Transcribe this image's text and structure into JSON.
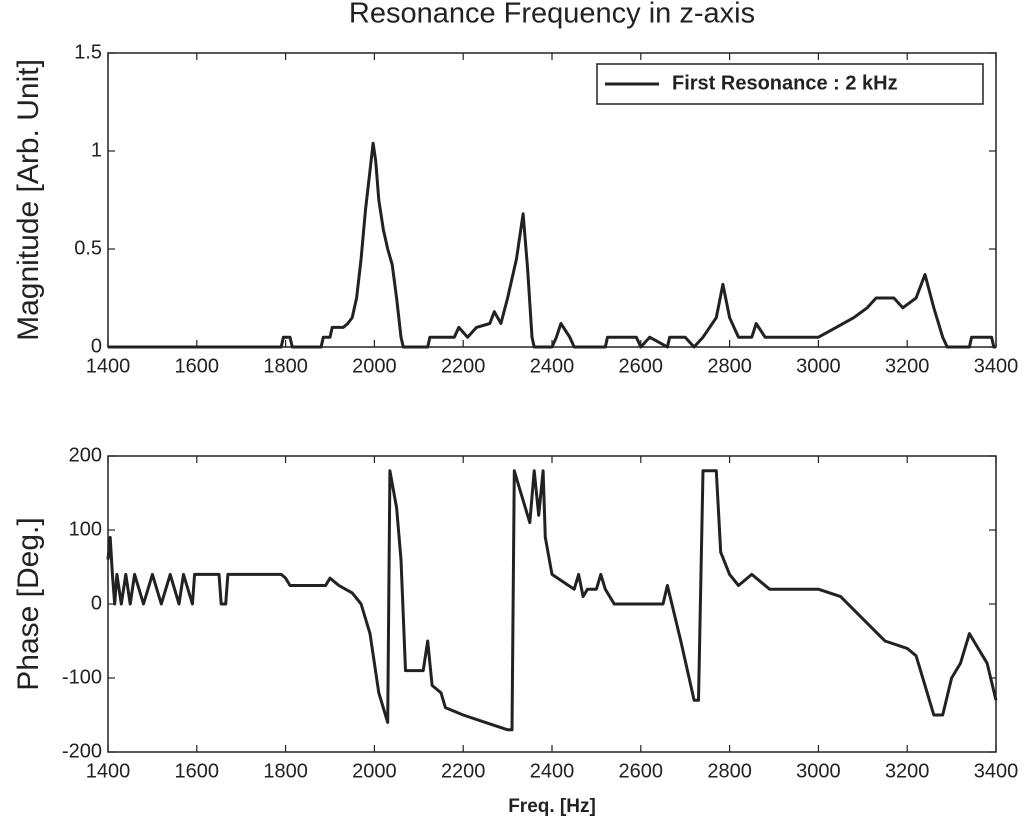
{
  "chart_data": [
    {
      "type": "line",
      "title": "Resonance Frequency in z-axis",
      "y_label": "Magnitude [Arb. Unit]",
      "x": [
        1400,
        1790,
        1795,
        1810,
        1815,
        1880,
        1885,
        1900,
        1905,
        1930,
        1940,
        1950,
        1960,
        1970,
        1980,
        1990,
        1997,
        2003,
        2010,
        2020,
        2030,
        2040,
        2050,
        2060,
        2065,
        2120,
        2125,
        2180,
        2190,
        2210,
        2230,
        2260,
        2270,
        2285,
        2300,
        2320,
        2335,
        2345,
        2355,
        2360,
        2400,
        2410,
        2420,
        2440,
        2450,
        2520,
        2525,
        2590,
        2600,
        2620,
        2660,
        2665,
        2700,
        2720,
        2740,
        2770,
        2785,
        2800,
        2820,
        2850,
        2860,
        2880,
        3000,
        3040,
        3080,
        3110,
        3130,
        3170,
        3190,
        3220,
        3240,
        3260,
        3280,
        3290,
        3340,
        3345,
        3390,
        3395,
        3400
      ],
      "series": [
        {
          "name": "First Resonance : 2 kHz",
          "color": "#222222",
          "values": [
            0,
            0,
            0.05,
            0.05,
            0,
            0,
            0.05,
            0.05,
            0.1,
            0.1,
            0.12,
            0.15,
            0.25,
            0.45,
            0.7,
            0.9,
            1.04,
            0.95,
            0.75,
            0.6,
            0.5,
            0.42,
            0.25,
            0.05,
            0,
            0,
            0.05,
            0.05,
            0.1,
            0.05,
            0.1,
            0.12,
            0.18,
            0.12,
            0.25,
            0.45,
            0.68,
            0.4,
            0.05,
            0,
            0,
            0.05,
            0.12,
            0.05,
            0,
            0,
            0.05,
            0.05,
            0,
            0.05,
            0,
            0.05,
            0.05,
            0,
            0.05,
            0.15,
            0.32,
            0.15,
            0.05,
            0.05,
            0.12,
            0.05,
            0.05,
            0.1,
            0.15,
            0.2,
            0.25,
            0.25,
            0.2,
            0.25,
            0.37,
            0.2,
            0.05,
            0,
            0,
            0.05,
            0.05,
            0,
            0
          ]
        }
      ],
      "xlim": [
        1400,
        3400
      ],
      "xticks": [
        1400,
        1600,
        1800,
        2000,
        2200,
        2400,
        2600,
        2800,
        3000,
        3200,
        3400
      ],
      "ylim": [
        0,
        1.5
      ],
      "yticks": [
        0,
        0.5,
        1,
        1.5
      ],
      "legend": "upper right",
      "grid": false
    },
    {
      "type": "line",
      "y_label": "Phase [Deg.]",
      "x_label": "Freq. [Hz]",
      "color": "#222222",
      "x": [
        1400,
        1405,
        1410,
        1415,
        1420,
        1430,
        1440,
        1450,
        1460,
        1480,
        1500,
        1520,
        1540,
        1560,
        1570,
        1590,
        1595,
        1650,
        1655,
        1665,
        1670,
        1790,
        1800,
        1810,
        1890,
        1900,
        1920,
        1950,
        1970,
        1990,
        2010,
        2030,
        2035,
        2050,
        2060,
        2070,
        2110,
        2120,
        2130,
        2150,
        2160,
        2200,
        2250,
        2300,
        2310,
        2315,
        2330,
        2350,
        2360,
        2370,
        2380,
        2385,
        2400,
        2450,
        2460,
        2470,
        2480,
        2500,
        2510,
        2520,
        2540,
        2650,
        2660,
        2670,
        2690,
        2720,
        2730,
        2740,
        2770,
        2780,
        2800,
        2820,
        2850,
        2870,
        2890,
        3000,
        3050,
        3100,
        3150,
        3200,
        3220,
        3240,
        3260,
        3280,
        3300,
        3320,
        3340,
        3360,
        3380,
        3400
      ],
      "values": [
        60,
        90,
        40,
        0,
        40,
        0,
        40,
        0,
        40,
        0,
        40,
        0,
        40,
        0,
        40,
        0,
        40,
        40,
        0,
        0,
        40,
        40,
        35,
        25,
        25,
        35,
        25,
        15,
        0,
        -40,
        -120,
        -160,
        180,
        130,
        60,
        -90,
        -90,
        -50,
        -110,
        -120,
        -140,
        -150,
        -160,
        -170,
        -170,
        180,
        150,
        110,
        180,
        120,
        180,
        90,
        40,
        20,
        40,
        10,
        20,
        20,
        40,
        20,
        0,
        0,
        25,
        0,
        -50,
        -130,
        -130,
        180,
        180,
        70,
        40,
        25,
        40,
        30,
        20,
        20,
        10,
        -20,
        -50,
        -60,
        -70,
        -110,
        -150,
        -150,
        -100,
        -80,
        -40,
        -60,
        -80,
        -130
      ],
      "xlim": [
        1400,
        3400
      ],
      "xticks": [
        1400,
        1600,
        1800,
        2000,
        2200,
        2400,
        2600,
        2800,
        3000,
        3200,
        3400
      ],
      "ylim": [
        -200,
        200
      ],
      "yticks": [
        -200,
        -100,
        0,
        100,
        200
      ],
      "grid": false
    }
  ]
}
